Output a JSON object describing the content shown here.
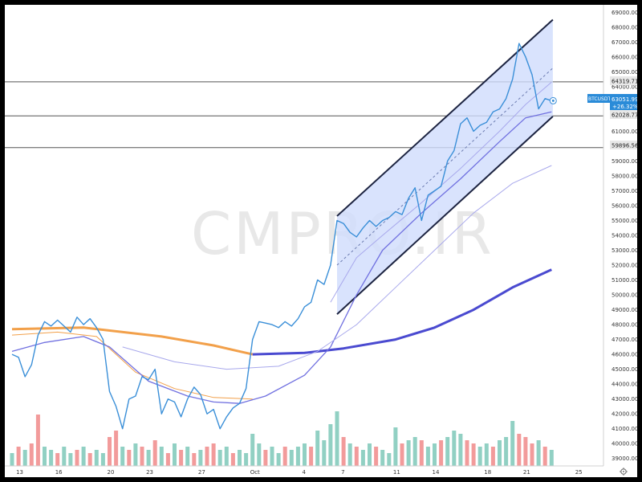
{
  "watermark": "CMPRO.IR",
  "colors": {
    "price_line": "#3a8fd8",
    "channel_fill": "#cfdcfc",
    "channel_border": "#1c2340",
    "ma_orange": "#f2a04a",
    "ma_blue_thick": "#4a4ad0",
    "ma_violet": "#7070e0",
    "ma_light_violet": "#a8a8ec",
    "horizontal_line": "#555555",
    "volume_up": "#7ec8b8",
    "volume_down": "#f08a8a",
    "current_price_bg": "#2a8bd8"
  },
  "price_label": {
    "symbol": "BTCUSDT",
    "price": "63051.99",
    "change": "+26.32%"
  },
  "horizontal_levels": [
    "64319.71",
    "62028.77",
    "59896.56"
  ],
  "chart_data": {
    "type": "line",
    "title": "",
    "ylim": [
      38500,
      69500
    ],
    "y_ticks": [
      "39000.00",
      "40000.00",
      "41000.00",
      "42000.00",
      "43000.00",
      "44000.00",
      "45000.00",
      "46000.00",
      "47000.00",
      "48000.00",
      "49000.00",
      "50000.00",
      "51000.00",
      "52000.00",
      "53000.00",
      "54000.00",
      "55000.00",
      "56000.00",
      "57000.00",
      "58000.00",
      "59000.00",
      "60000.00",
      "61000.00",
      "62000.00",
      "63000.00",
      "64000.00",
      "65000.00",
      "66000.00",
      "67000.00",
      "68000.00",
      "69000.00"
    ],
    "x_ticks": [
      {
        "label": "13",
        "day": 13
      },
      {
        "label": "16",
        "day": 16
      },
      {
        "label": "20",
        "day": 20
      },
      {
        "label": "23",
        "day": 23
      },
      {
        "label": "27",
        "day": 27
      },
      {
        "label": "Oct",
        "day": 31
      },
      {
        "label": "4",
        "day": 35
      },
      {
        "label": "7",
        "day": 38
      },
      {
        "label": "11",
        "day": 42
      },
      {
        "label": "14",
        "day": 45
      },
      {
        "label": "18",
        "day": 49
      },
      {
        "label": "21",
        "day": 52
      },
      {
        "label": "25",
        "day": 56
      }
    ],
    "price_series": {
      "name": "BTCUSDT",
      "points": [
        [
          12.5,
          46000
        ],
        [
          13,
          45800
        ],
        [
          13.5,
          44500
        ],
        [
          14,
          45300
        ],
        [
          14.5,
          47300
        ],
        [
          15,
          48200
        ],
        [
          15.5,
          47900
        ],
        [
          16,
          48300
        ],
        [
          16.5,
          47900
        ],
        [
          17,
          47500
        ],
        [
          17.5,
          48500
        ],
        [
          18,
          48000
        ],
        [
          18.5,
          48400
        ],
        [
          19,
          47800
        ],
        [
          19.5,
          47000
        ],
        [
          20,
          43500
        ],
        [
          20.5,
          42500
        ],
        [
          21,
          41000
        ],
        [
          21.5,
          43000
        ],
        [
          22,
          43200
        ],
        [
          22.5,
          44500
        ],
        [
          23,
          44300
        ],
        [
          23.5,
          45000
        ],
        [
          24,
          42000
        ],
        [
          24.5,
          43000
        ],
        [
          25,
          42800
        ],
        [
          25.5,
          41800
        ],
        [
          26,
          43000
        ],
        [
          26.5,
          43800
        ],
        [
          27,
          43300
        ],
        [
          27.5,
          42000
        ],
        [
          28,
          42300
        ],
        [
          28.5,
          41000
        ],
        [
          29,
          41800
        ],
        [
          29.5,
          42400
        ],
        [
          30,
          42700
        ],
        [
          30.5,
          43700
        ],
        [
          31,
          47000
        ],
        [
          31.5,
          48200
        ],
        [
          32,
          48100
        ],
        [
          32.5,
          48000
        ],
        [
          33,
          47800
        ],
        [
          33.5,
          48200
        ],
        [
          34,
          47900
        ],
        [
          34.5,
          48400
        ],
        [
          35,
          49200
        ],
        [
          35.5,
          49500
        ],
        [
          36,
          51000
        ],
        [
          36.5,
          50700
        ],
        [
          37,
          52000
        ],
        [
          37.5,
          55000
        ],
        [
          38,
          54800
        ],
        [
          38.5,
          54200
        ],
        [
          39,
          53900
        ],
        [
          39.5,
          54500
        ],
        [
          40,
          55000
        ],
        [
          40.5,
          54600
        ],
        [
          41,
          55000
        ],
        [
          41.5,
          55200
        ],
        [
          42,
          55600
        ],
        [
          42.5,
          55400
        ],
        [
          43,
          56500
        ],
        [
          43.5,
          57200
        ],
        [
          44,
          55000
        ],
        [
          44.5,
          56700
        ],
        [
          45,
          57000
        ],
        [
          45.5,
          57300
        ],
        [
          46,
          59000
        ],
        [
          46.5,
          59700
        ],
        [
          47,
          61500
        ],
        [
          47.5,
          61900
        ],
        [
          48,
          61000
        ],
        [
          48.5,
          61400
        ],
        [
          49,
          61600
        ],
        [
          49.5,
          62300
        ],
        [
          50,
          62500
        ],
        [
          50.5,
          63200
        ],
        [
          51,
          64500
        ],
        [
          51.5,
          66900
        ],
        [
          52,
          66000
        ],
        [
          52.5,
          64800
        ],
        [
          53,
          62500
        ],
        [
          53.5,
          63200
        ],
        [
          54,
          63050
        ]
      ]
    },
    "channel": {
      "upper": [
        [
          37.5,
          55300
        ],
        [
          54.1,
          68500
        ]
      ],
      "lower": [
        [
          37.5,
          48700
        ],
        [
          54.1,
          62000
        ]
      ]
    },
    "moving_averages": [
      {
        "kind": "orange_thick",
        "points": [
          [
            12.5,
            47700
          ],
          [
            18,
            47800
          ],
          [
            24,
            47200
          ],
          [
            28,
            46600
          ],
          [
            30,
            46200
          ],
          [
            31,
            46000
          ]
        ]
      },
      {
        "kind": "orange_thin",
        "points": [
          [
            12.5,
            47300
          ],
          [
            16,
            47500
          ],
          [
            19,
            47200
          ],
          [
            22,
            44800
          ],
          [
            25,
            43700
          ],
          [
            28,
            43100
          ],
          [
            31,
            43000
          ]
        ]
      },
      {
        "kind": "blue_thick",
        "points": [
          [
            31,
            46000
          ],
          [
            35,
            46100
          ],
          [
            38,
            46400
          ],
          [
            42,
            47000
          ],
          [
            45,
            47800
          ],
          [
            48,
            49000
          ],
          [
            51,
            50500
          ],
          [
            54,
            51700
          ]
        ]
      },
      {
        "kind": "violet_mid",
        "points": [
          [
            12.5,
            46200
          ],
          [
            15,
            46800
          ],
          [
            18,
            47200
          ],
          [
            20,
            46500
          ],
          [
            23,
            44200
          ],
          [
            26,
            43200
          ],
          [
            28,
            42800
          ],
          [
            30,
            42700
          ],
          [
            32,
            43200
          ],
          [
            35,
            44600
          ],
          [
            37,
            46500
          ],
          [
            39,
            50000
          ],
          [
            41,
            53000
          ],
          [
            44,
            55500
          ],
          [
            47,
            57800
          ],
          [
            50,
            60300
          ],
          [
            52,
            61900
          ],
          [
            54,
            62300
          ]
        ]
      },
      {
        "kind": "violet_light",
        "points": [
          [
            21,
            46500
          ],
          [
            25,
            45500
          ],
          [
            29,
            45000
          ],
          [
            33,
            45200
          ],
          [
            36,
            46200
          ],
          [
            39,
            48000
          ],
          [
            42,
            50500
          ],
          [
            45,
            53000
          ],
          [
            48,
            55500
          ],
          [
            51,
            57500
          ],
          [
            54,
            58700
          ]
        ]
      },
      {
        "kind": "violet_thin_upper",
        "points": [
          [
            37,
            49500
          ],
          [
            39,
            52500
          ],
          [
            41,
            54000
          ],
          [
            44,
            56200
          ],
          [
            47,
            58500
          ],
          [
            50,
            61000
          ],
          [
            52,
            62800
          ],
          [
            54,
            64300
          ]
        ]
      }
    ],
    "volume": {
      "bars": [
        [
          12.5,
          0.2,
          "up"
        ],
        [
          13,
          0.3,
          "down"
        ],
        [
          13.5,
          0.25,
          "up"
        ],
        [
          14,
          0.35,
          "down"
        ],
        [
          14.5,
          0.8,
          "down"
        ],
        [
          15,
          0.3,
          "up"
        ],
        [
          15.5,
          0.25,
          "up"
        ],
        [
          16,
          0.2,
          "down"
        ],
        [
          16.5,
          0.3,
          "up"
        ],
        [
          17,
          0.2,
          "up"
        ],
        [
          17.5,
          0.25,
          "down"
        ],
        [
          18,
          0.3,
          "up"
        ],
        [
          18.5,
          0.2,
          "down"
        ],
        [
          19,
          0.25,
          "up"
        ],
        [
          19.5,
          0.2,
          "up"
        ],
        [
          20,
          0.45,
          "down"
        ],
        [
          20.5,
          0.55,
          "down"
        ],
        [
          21,
          0.3,
          "up"
        ],
        [
          21.5,
          0.25,
          "down"
        ],
        [
          22,
          0.35,
          "up"
        ],
        [
          22.5,
          0.3,
          "down"
        ],
        [
          23,
          0.25,
          "up"
        ],
        [
          23.5,
          0.4,
          "down"
        ],
        [
          24,
          0.3,
          "up"
        ],
        [
          24.5,
          0.2,
          "down"
        ],
        [
          25,
          0.35,
          "up"
        ],
        [
          25.5,
          0.25,
          "down"
        ],
        [
          26,
          0.3,
          "up"
        ],
        [
          26.5,
          0.2,
          "down"
        ],
        [
          27,
          0.25,
          "up"
        ],
        [
          27.5,
          0.3,
          "down"
        ],
        [
          28,
          0.35,
          "down"
        ],
        [
          28.5,
          0.25,
          "up"
        ],
        [
          29,
          0.3,
          "up"
        ],
        [
          29.5,
          0.2,
          "down"
        ],
        [
          30,
          0.25,
          "up"
        ],
        [
          30.5,
          0.2,
          "up"
        ],
        [
          31,
          0.5,
          "up"
        ],
        [
          31.5,
          0.35,
          "up"
        ],
        [
          32,
          0.25,
          "down"
        ],
        [
          32.5,
          0.3,
          "up"
        ],
        [
          33,
          0.2,
          "up"
        ],
        [
          33.5,
          0.3,
          "down"
        ],
        [
          34,
          0.25,
          "up"
        ],
        [
          34.5,
          0.3,
          "up"
        ],
        [
          35,
          0.35,
          "up"
        ],
        [
          35.5,
          0.3,
          "down"
        ],
        [
          36,
          0.55,
          "up"
        ],
        [
          36.5,
          0.4,
          "up"
        ],
        [
          37,
          0.65,
          "up"
        ],
        [
          37.5,
          0.85,
          "up"
        ],
        [
          38,
          0.45,
          "down"
        ],
        [
          38.5,
          0.35,
          "up"
        ],
        [
          39,
          0.3,
          "down"
        ],
        [
          39.5,
          0.25,
          "up"
        ],
        [
          40,
          0.35,
          "up"
        ],
        [
          40.5,
          0.3,
          "down"
        ],
        [
          41,
          0.25,
          "up"
        ],
        [
          41.5,
          0.2,
          "up"
        ],
        [
          42,
          0.6,
          "up"
        ],
        [
          42.5,
          0.35,
          "down"
        ],
        [
          43,
          0.4,
          "up"
        ],
        [
          43.5,
          0.45,
          "up"
        ],
        [
          44,
          0.4,
          "down"
        ],
        [
          44.5,
          0.3,
          "up"
        ],
        [
          45,
          0.35,
          "up"
        ],
        [
          45.5,
          0.4,
          "down"
        ],
        [
          46,
          0.45,
          "up"
        ],
        [
          46.5,
          0.55,
          "up"
        ],
        [
          47,
          0.5,
          "up"
        ],
        [
          47.5,
          0.4,
          "down"
        ],
        [
          48,
          0.35,
          "down"
        ],
        [
          48.5,
          0.3,
          "up"
        ],
        [
          49,
          0.35,
          "up"
        ],
        [
          49.5,
          0.3,
          "down"
        ],
        [
          50,
          0.4,
          "up"
        ],
        [
          50.5,
          0.45,
          "up"
        ],
        [
          51,
          0.7,
          "up"
        ],
        [
          51.5,
          0.5,
          "down"
        ],
        [
          52,
          0.45,
          "down"
        ],
        [
          52.5,
          0.35,
          "down"
        ],
        [
          53,
          0.4,
          "up"
        ],
        [
          53.5,
          0.3,
          "down"
        ],
        [
          54,
          0.25,
          "up"
        ]
      ]
    }
  }
}
